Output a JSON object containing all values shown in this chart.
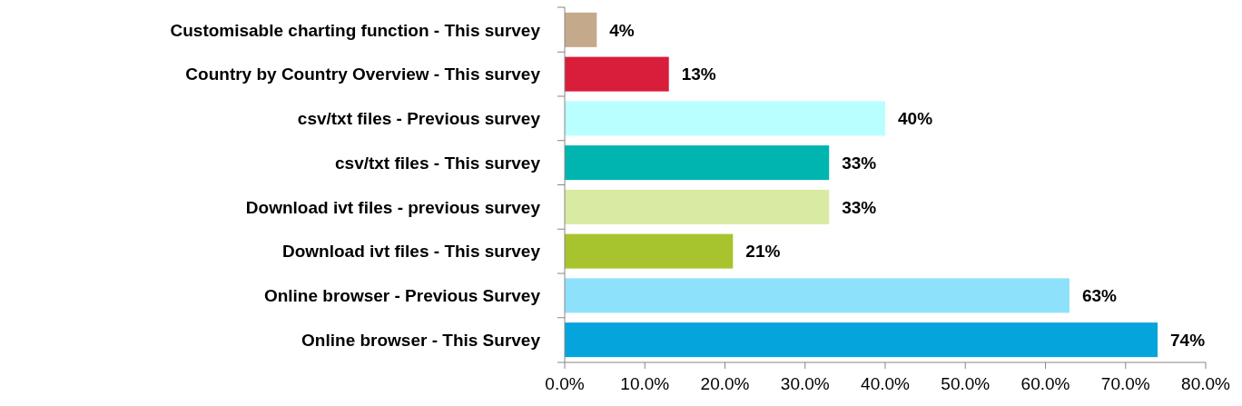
{
  "chart_data": {
    "type": "bar",
    "orientation": "horizontal",
    "categories": [
      "Customisable charting function - This survey",
      "Country by Country Overview - This survey",
      "csv/txt files - Previous survey",
      "csv/txt files - This survey",
      "Download ivt files - previous survey",
      "Download ivt files - This survey",
      "Online browser - Previous Survey",
      "Online browser - This Survey"
    ],
    "values": [
      4,
      13,
      40,
      33,
      33,
      21,
      63,
      74
    ],
    "colors": [
      "#c4a98a",
      "#d81e3a",
      "#b9ffff",
      "#00b4b0",
      "#d9eaa3",
      "#a7c42e",
      "#8ee1fb",
      "#05a4dc"
    ],
    "value_labels": [
      "4%",
      "13%",
      "40%",
      "33%",
      "33%",
      "21%",
      "63%",
      "74%"
    ],
    "xlim": [
      0,
      80
    ],
    "xticks": [
      {
        "value": 0,
        "label": "0.0%"
      },
      {
        "value": 10,
        "label": "10.0%"
      },
      {
        "value": 20,
        "label": "20.0%"
      },
      {
        "value": 30,
        "label": "30.0%"
      },
      {
        "value": 40,
        "label": "40.0%"
      },
      {
        "value": 50,
        "label": "50.0%"
      },
      {
        "value": 60,
        "label": "60.0%"
      },
      {
        "value": 70,
        "label": "70.0%"
      },
      {
        "value": 80,
        "label": "80.0%"
      }
    ],
    "grid": false
  }
}
